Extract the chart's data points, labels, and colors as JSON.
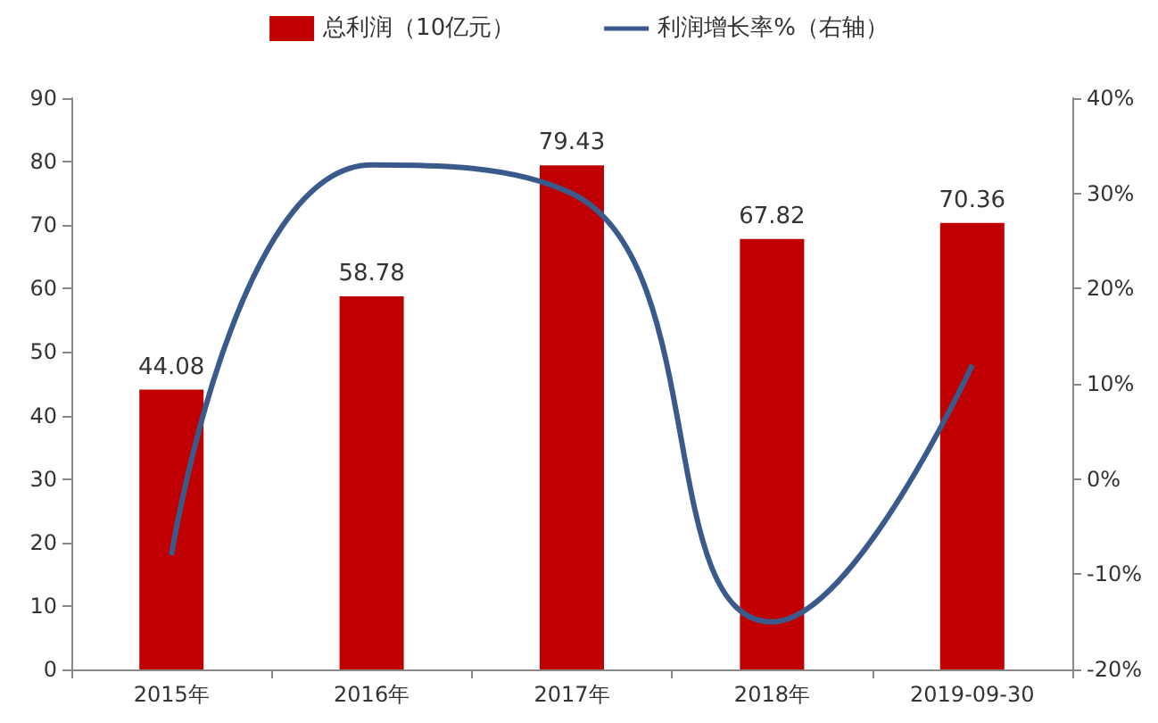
{
  "chart_data": {
    "type": "bar",
    "categories": [
      "2015年",
      "2016年",
      "2017年",
      "2018年",
      "2019-09-30"
    ],
    "series": [
      {
        "name": "总利润（10亿元）",
        "type": "bar",
        "color": "#c00000",
        "values": [
          44.08,
          58.78,
          79.43,
          67.82,
          70.36
        ],
        "value_labels": [
          "44.08",
          "58.78",
          "79.43",
          "67.82",
          "70.36"
        ]
      },
      {
        "name": "利润增长率%（右轴）",
        "type": "line",
        "axis": "y2",
        "color": "#3b5a8c",
        "values": [
          -8,
          33,
          30,
          -15,
          12
        ]
      }
    ],
    "ylim": [
      0,
      90
    ],
    "yticks": [
      0,
      10,
      20,
      30,
      40,
      50,
      60,
      70,
      80,
      90
    ],
    "y2lim": [
      -20,
      40
    ],
    "y2ticks": [
      {
        "value": -20,
        "label": "-20%"
      },
      {
        "value": -10,
        "label": "-10%"
      },
      {
        "value": 0,
        "label": "0%"
      },
      {
        "value": 10,
        "label": "10%"
      },
      {
        "value": 20,
        "label": "20%"
      },
      {
        "value": 30,
        "label": "30%"
      },
      {
        "value": 40,
        "label": "40%"
      }
    ],
    "grid": false,
    "legend": "top",
    "marker": "none"
  }
}
